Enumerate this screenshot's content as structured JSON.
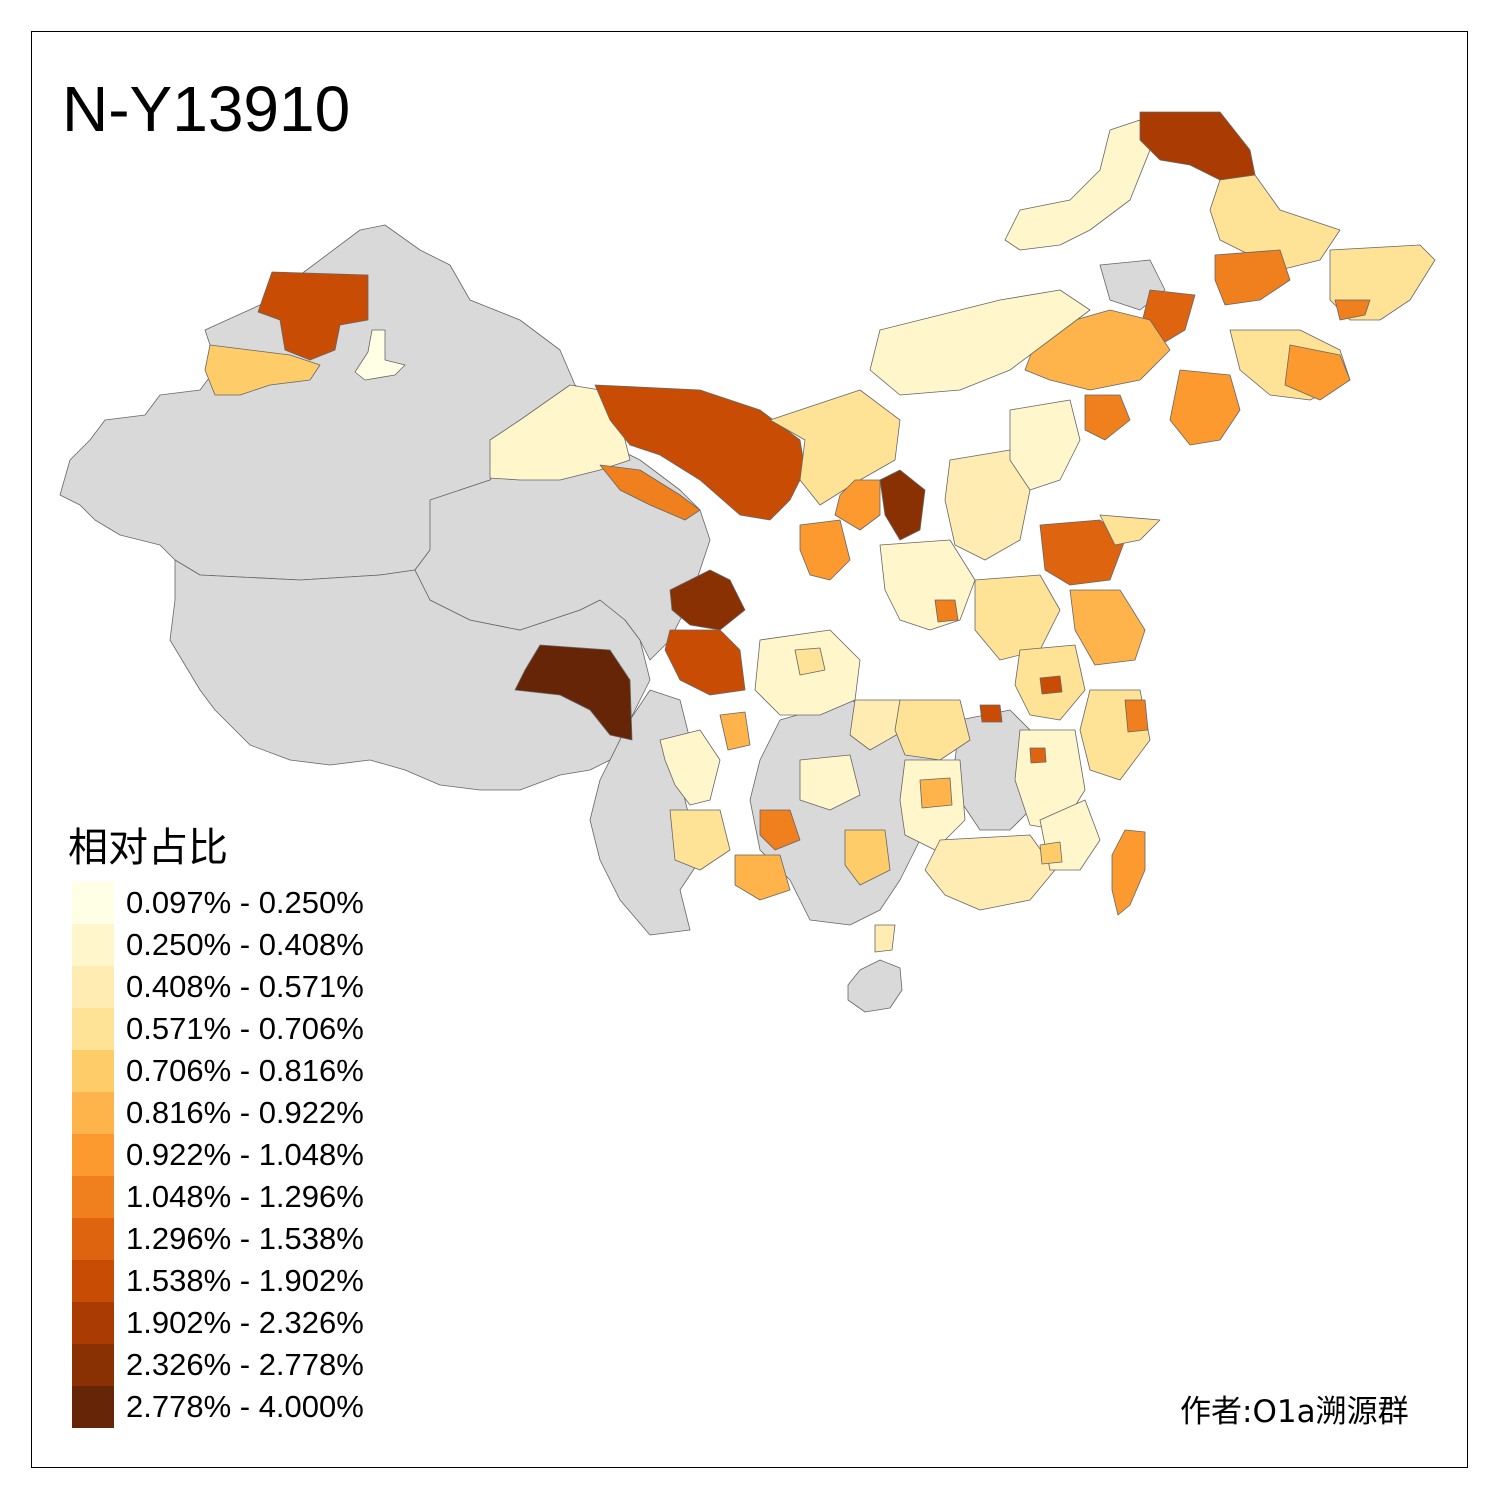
{
  "title": "N-Y13910",
  "legend": {
    "title": "相对占比",
    "items": [
      {
        "label": "0.097% - 0.250%",
        "color": "#ffffe5"
      },
      {
        "label": "0.250% - 0.408%",
        "color": "#fff6cc"
      },
      {
        "label": "0.408% - 0.571%",
        "color": "#ffecb2"
      },
      {
        "label": "0.571% - 0.706%",
        "color": "#fee296"
      },
      {
        "label": "0.706% - 0.816%",
        "color": "#fecd6a"
      },
      {
        "label": "0.816% - 0.922%",
        "color": "#feb44a"
      },
      {
        "label": "0.922% - 1.048%",
        "color": "#fd9a2f"
      },
      {
        "label": "1.048% - 1.296%",
        "color": "#f07f1e"
      },
      {
        "label": "1.296% - 1.538%",
        "color": "#de6410"
      },
      {
        "label": "1.538% - 1.902%",
        "color": "#c94c05"
      },
      {
        "label": "1.902% - 2.326%",
        "color": "#aa3c03"
      },
      {
        "label": "2.326% - 2.778%",
        "color": "#8a3104"
      },
      {
        "label": "2.778% - 4.000%",
        "color": "#662506"
      }
    ]
  },
  "no_data_color": "#d9d9d9",
  "author": "作者:O1a溯源群"
}
